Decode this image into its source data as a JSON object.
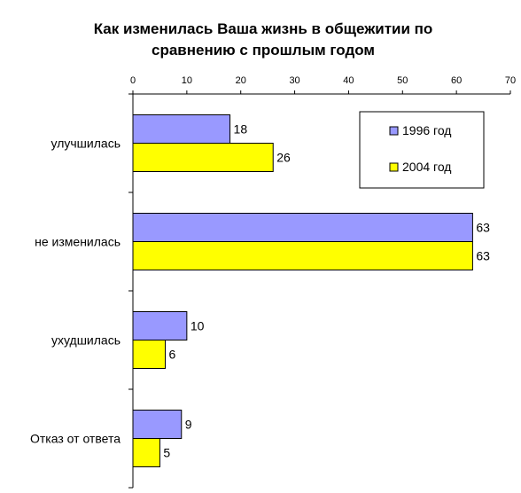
{
  "chart_data": {
    "type": "bar",
    "orientation": "horizontal",
    "title_lines": [
      "Как изменилась Ваша жизнь в общежитии по",
      "сравнению с прошлым годом"
    ],
    "categories": [
      "улучшилась",
      "не изменилась",
      "ухудшилась",
      "Отказ от ответа"
    ],
    "series": [
      {
        "name": "1996 год",
        "color": "#9999ff",
        "values": [
          18,
          63,
          10,
          9
        ]
      },
      {
        "name": "2004 год",
        "color": "#ffff00",
        "values": [
          26,
          63,
          6,
          5
        ]
      }
    ],
    "xlim": [
      0,
      70
    ],
    "xticks": [
      0,
      10,
      20,
      30,
      40,
      50,
      60,
      70
    ],
    "x_axis_position": "top",
    "grid": false,
    "legend": "top-right"
  }
}
